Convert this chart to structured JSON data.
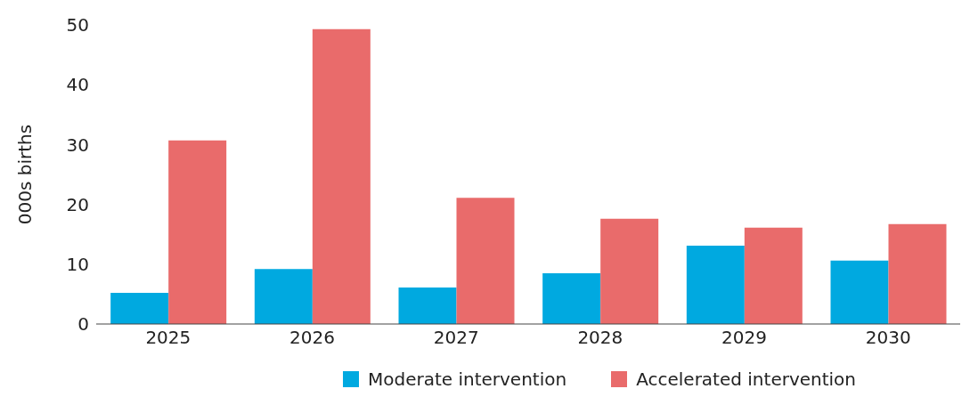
{
  "chart_data": {
    "type": "bar",
    "ylabel": "000s births",
    "categories": [
      "2025",
      "2026",
      "2027",
      "2028",
      "2029",
      "2030"
    ],
    "series": [
      {
        "name": "Moderate intervention",
        "color": "#00a9e0",
        "values": [
          5.2,
          9.2,
          6.1,
          8.5,
          13.1,
          10.6
        ]
      },
      {
        "name": "Accelerated intervention",
        "color": "#e96b6b",
        "values": [
          30.7,
          49.3,
          21.1,
          17.6,
          16.1,
          16.7
        ]
      }
    ],
    "ylim": [
      0,
      50
    ],
    "yticks": [
      0,
      10,
      20,
      30,
      40,
      50
    ],
    "grid": false,
    "legend": "bottom"
  }
}
